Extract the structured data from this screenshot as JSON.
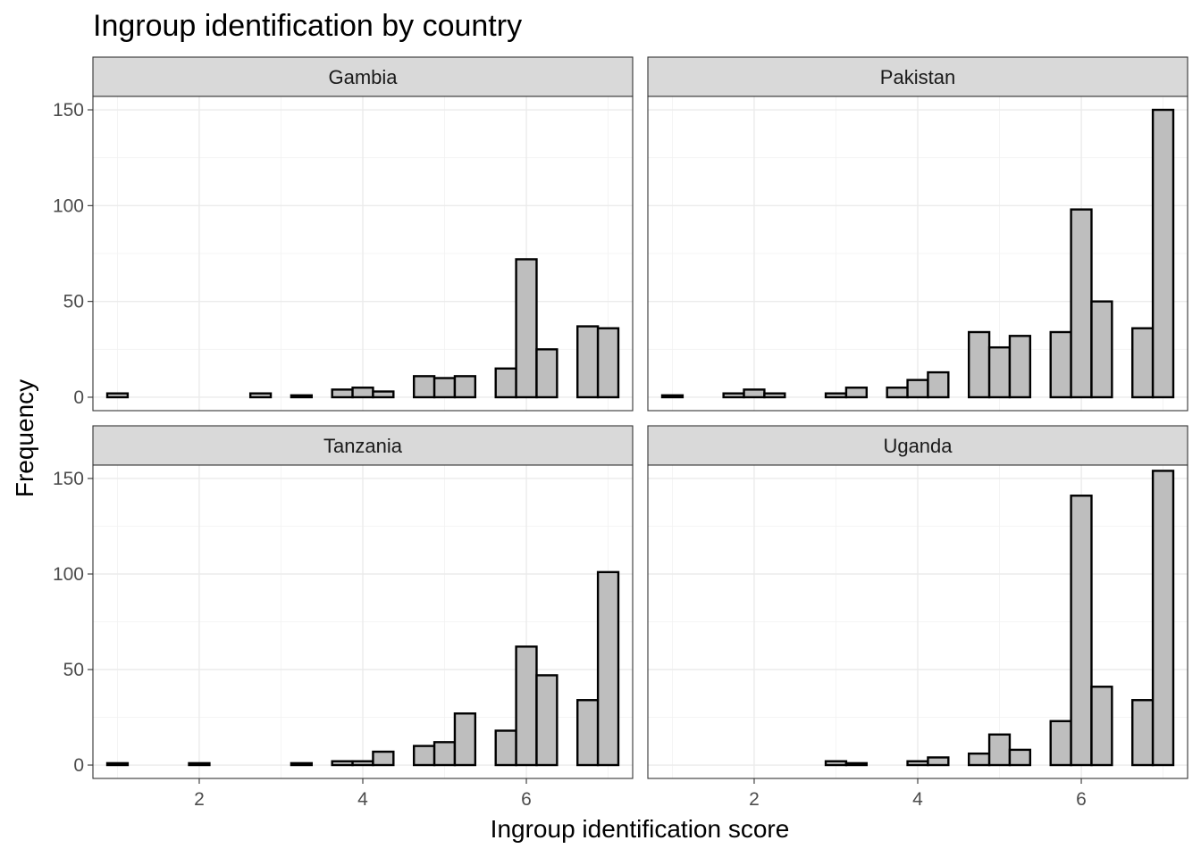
{
  "chart_data": {
    "type": "bar",
    "subtype": "faceted-histogram",
    "title": "Ingroup identification by country",
    "xlabel": "Ingroup identification score",
    "ylabel": "Frequency",
    "xlim": [
      0.7,
      7.3
    ],
    "ylim": [
      -7,
      157
    ],
    "x_ticks": [
      2,
      4,
      6
    ],
    "y_ticks": [
      0,
      50,
      100,
      150
    ],
    "grid": true,
    "bin_width": 0.25,
    "bin_centers": [
      1.0,
      1.25,
      1.5,
      1.75,
      2.0,
      2.25,
      2.5,
      2.75,
      3.0,
      3.25,
      3.5,
      3.75,
      4.0,
      4.25,
      4.5,
      4.75,
      5.0,
      5.25,
      5.5,
      5.75,
      6.0,
      6.25,
      6.5,
      6.75,
      7.0
    ],
    "colors": {
      "bar_fill": "#bebebe",
      "bar_outline": "#000000",
      "strip": "#d9d9d9",
      "grid": "#ebebeb"
    },
    "panels": [
      {
        "name": "Gambia",
        "values": [
          2,
          0,
          0,
          0,
          0,
          0,
          0,
          2,
          0,
          1,
          0,
          4,
          5,
          3,
          0,
          11,
          10,
          11,
          0,
          15,
          72,
          25,
          0,
          37,
          36
        ]
      },
      {
        "name": "Pakistan",
        "values": [
          1,
          0,
          0,
          2,
          4,
          2,
          0,
          0,
          2,
          5,
          0,
          5,
          9,
          13,
          0,
          34,
          26,
          32,
          0,
          34,
          98,
          50,
          0,
          36,
          150
        ]
      },
      {
        "name": "Tanzania",
        "values": [
          1,
          0,
          0,
          0,
          1,
          0,
          0,
          0,
          0,
          1,
          0,
          2,
          2,
          7,
          0,
          10,
          12,
          27,
          0,
          18,
          62,
          47,
          0,
          34,
          101
        ]
      },
      {
        "name": "Uganda",
        "values": [
          0,
          0,
          0,
          0,
          0,
          0,
          0,
          0,
          2,
          1,
          0,
          0,
          2,
          4,
          0,
          6,
          16,
          8,
          0,
          23,
          141,
          41,
          0,
          34,
          154
        ]
      }
    ]
  }
}
